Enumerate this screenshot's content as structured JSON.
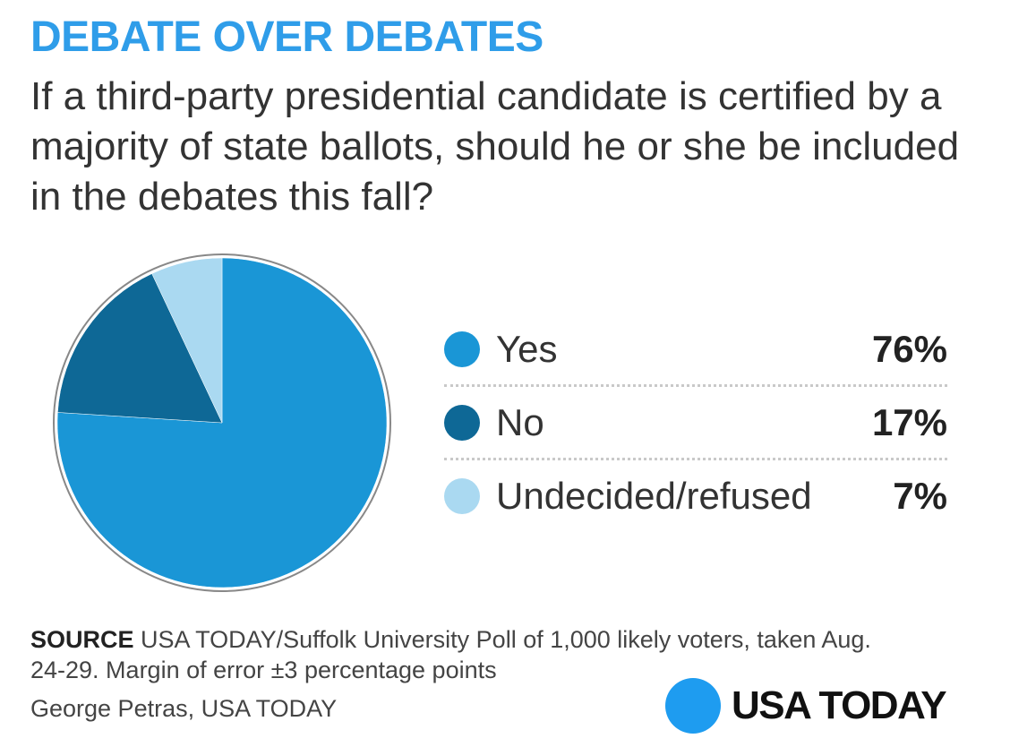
{
  "header": {
    "title": "DEBATE OVER DEBATES",
    "question": "If a third-party presidential candidate is certified by a majority of state ballots, should he or she be included in the debates this fall?"
  },
  "chart_data": {
    "type": "pie",
    "slices": [
      {
        "label": "Yes",
        "value": 76,
        "display": "76%",
        "color": "#1a96d6"
      },
      {
        "label": "No",
        "value": 17,
        "display": "17%",
        "color": "#0e6896"
      },
      {
        "label": "Undecided/refused",
        "value": 7,
        "display": "7%",
        "color": "#aad9f1"
      }
    ],
    "outline_color": "#888888"
  },
  "footer": {
    "source_label": "SOURCE",
    "source_text": "USA TODAY/Suffolk University Poll of 1,000 likely voters, taken Aug. 24-29. Margin of error ±3 percentage points",
    "credit": "George Petras, USA TODAY",
    "logo_text": "USA TODAY",
    "logo_color": "#1e9cf0"
  }
}
